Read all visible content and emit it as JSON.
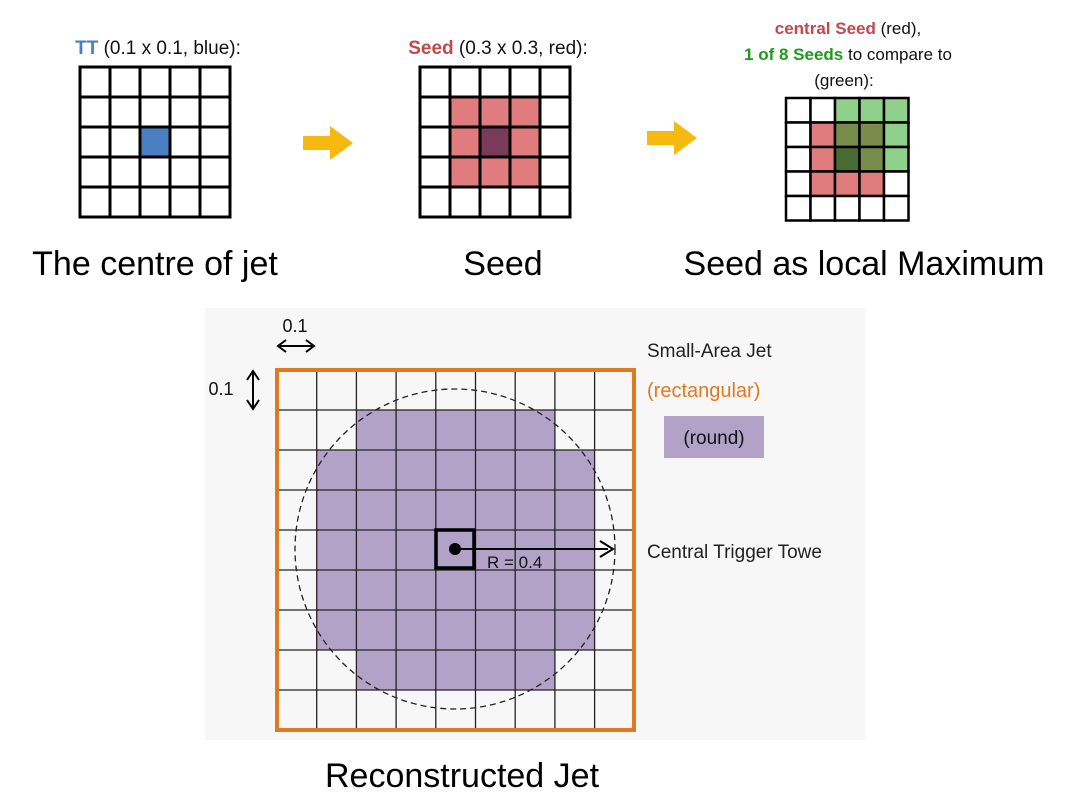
{
  "panel_tt": {
    "label_key": "TT",
    "label_rest": " (0.1 x 0.1, blue):",
    "caption": "The centre of jet"
  },
  "panel_seed": {
    "label_key": "Seed",
    "label_rest": " (0.3 x 0.3, red):",
    "caption": "Seed"
  },
  "panel_local_max": {
    "line1_key": "central Seed",
    "line1_rest": " (red),",
    "line2_key": "1 of 8 Seeds",
    "line2_rest": " to compare to",
    "line3": "(green):",
    "caption": "Seed as local Maximum"
  },
  "jet": {
    "cell_width_label": "0.1",
    "cell_height_label": "0.1",
    "legend_small_area": "Small-Area Jet",
    "legend_rectangular": "(rectangular)",
    "legend_round": "(round)",
    "radius_label": "R = 0.4",
    "central_tower_label": "Central Trigger Towe",
    "caption": "Reconstructed Jet"
  },
  "colors": {
    "tt_blue": "#4a7fc1",
    "seed_red": "#e07c7e",
    "central_dark": "#7a3a5a",
    "compare_green": "#8fd08a",
    "overlap_green": "#788c4c",
    "overlap_dark": "#4a6a34",
    "arrow_yellow": "#f5b90f",
    "jet_purple": "#b2a2c8",
    "rect_orange": "#e07a22",
    "label_blue": "#4a7fc1",
    "label_red": "#c4474b",
    "label_green": "#1f9a1f",
    "label_orange": "#e07a22"
  }
}
